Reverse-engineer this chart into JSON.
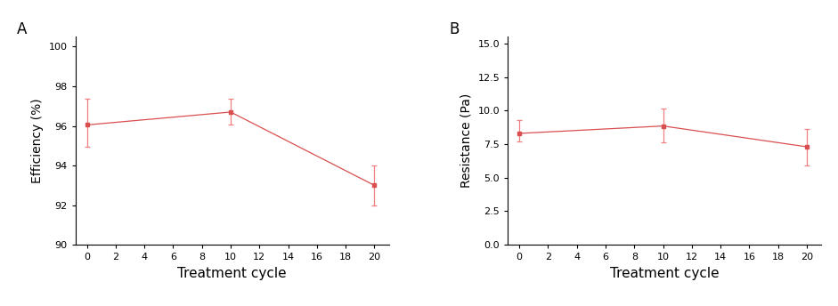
{
  "panel_A": {
    "label": "A",
    "x": [
      0,
      10,
      20
    ],
    "y": [
      96.05,
      96.7,
      93.0
    ],
    "yerr_upper": [
      1.3,
      0.65,
      1.0
    ],
    "yerr_lower": [
      1.1,
      0.65,
      1.0
    ],
    "xlabel": "Treatment cycle",
    "ylabel": "Efficiency (%)",
    "xlim": [
      -0.8,
      21
    ],
    "ylim": [
      90,
      100.5
    ],
    "yticks": [
      90,
      92,
      94,
      96,
      98,
      100
    ],
    "xticks": [
      0,
      2,
      4,
      6,
      8,
      10,
      12,
      14,
      16,
      18,
      20
    ]
  },
  "panel_B": {
    "label": "B",
    "x": [
      0,
      10,
      20
    ],
    "y": [
      8.3,
      8.85,
      7.3
    ],
    "yerr_upper": [
      1.0,
      1.3,
      1.3
    ],
    "yerr_lower": [
      0.6,
      1.2,
      1.4
    ],
    "xlabel": "Treatment cycle",
    "ylabel": "Resistance (Pa)",
    "xlim": [
      -0.8,
      21
    ],
    "ylim": [
      0,
      15.5
    ],
    "yticks": [
      0.0,
      2.5,
      5.0,
      7.5,
      10.0,
      12.5,
      15.0
    ],
    "xticks": [
      0,
      2,
      4,
      6,
      8,
      10,
      12,
      14,
      16,
      18,
      20
    ]
  },
  "line_color": "#f08080",
  "marker_color": "#d94f4f",
  "marker_style": "s",
  "marker_size": 3.5,
  "line_width": 0.9,
  "capsize": 2.5,
  "capthick": 0.9,
  "elinewidth": 0.9,
  "xlabel_fontsize": 11,
  "ylabel_fontsize": 10,
  "tick_fontsize": 8,
  "panel_label_fontsize": 12
}
